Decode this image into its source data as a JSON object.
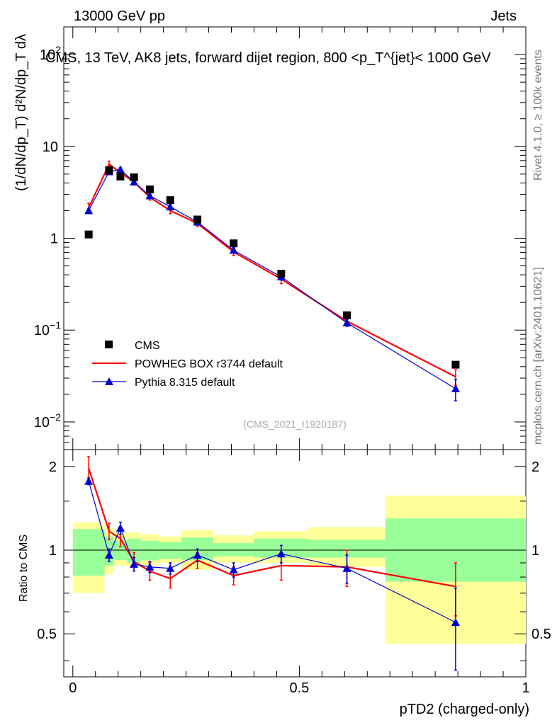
{
  "header": {
    "left": "13000 GeV pp",
    "right": "Jets"
  },
  "side_text": {
    "rivet": "Rivet 4.1.0, ≥ 100k events",
    "mcplots": "mcplots.cern.ch [arXiv:2401.10621]"
  },
  "analysis_id": "(CMS_2021_I1920187)",
  "colors": {
    "data": "#000000",
    "powheg": "#ff0000",
    "pythia": "#0000cc",
    "band_yellow": "#ffff99",
    "band_green": "#99ff99"
  },
  "chart_data": [
    {
      "type": "scatter",
      "role": "main",
      "title": "CMS, 13 TeV, AK8 jets, forward dijet region, 800 <p_T^{jet}< 1000 GeV",
      "ylabel": "(1/dN/dp_T) d²N/dp_T dλ",
      "yscale": "log",
      "ylim": [
        0.005,
        200
      ],
      "xlim": [
        -0.02,
        1.0
      ],
      "yticks": [
        {
          "value": 100,
          "label": "10",
          "sup": "2"
        },
        {
          "value": 10,
          "label": "10",
          "sup": ""
        },
        {
          "value": 1,
          "label": "1",
          "sup": ""
        },
        {
          "value": 0.1,
          "label": "10",
          "sup": "−1"
        },
        {
          "value": 0.01,
          "label": "10",
          "sup": "−2"
        }
      ],
      "x": [
        0.035,
        0.08,
        0.105,
        0.135,
        0.17,
        0.215,
        0.275,
        0.355,
        0.46,
        0.605,
        0.845
      ],
      "x_edges": [
        0,
        0.07,
        0.09,
        0.12,
        0.15,
        0.19,
        0.24,
        0.31,
        0.4,
        0.52,
        0.69,
        1.0
      ],
      "legend": [
        "CMS",
        "POWHEG BOX r3744 default",
        "Pythia 8.315 default"
      ],
      "series": [
        {
          "name": "CMS",
          "values": [
            1.1,
            5.5,
            4.7,
            4.6,
            3.4,
            2.6,
            1.6,
            0.88,
            0.41,
            0.145,
            0.042
          ]
        },
        {
          "name": "POWHEG BOX r3744 default",
          "values": [
            2.15,
            6.4,
            5.2,
            4.1,
            2.8,
            2.0,
            1.45,
            0.71,
            0.36,
            0.125,
            0.031
          ],
          "errors": [
            0.25,
            0.5,
            0.4,
            0.3,
            0.2,
            0.15,
            0.1,
            0.06,
            0.04,
            0.015,
            0.006
          ]
        },
        {
          "name": "Pythia 8.315 default",
          "values": [
            2.0,
            5.3,
            5.6,
            4.1,
            2.9,
            2.2,
            1.5,
            0.74,
            0.38,
            0.12,
            0.023
          ],
          "errors": [
            0.1,
            0.2,
            0.3,
            0.25,
            0.15,
            0.12,
            0.1,
            0.05,
            0.03,
            0.01,
            0.006
          ]
        }
      ]
    },
    {
      "type": "line",
      "role": "ratio",
      "ylabel": "Ratio to CMS",
      "xlabel": "pTD2 (charged-only)",
      "ylim": [
        0.35,
        2.3
      ],
      "xlim": [
        -0.02,
        1.0
      ],
      "yticks": [
        0.5,
        1,
        2
      ],
      "xticks": [
        0,
        0.5,
        1
      ],
      "band_green": [
        [
          0.81,
          1.19
        ],
        [
          0.88,
          1.12
        ],
        [
          0.92,
          1.08
        ],
        [
          0.9,
          1.1
        ],
        [
          0.92,
          1.08
        ],
        [
          0.93,
          1.07
        ],
        [
          0.92,
          1.11
        ],
        [
          0.95,
          1.06
        ],
        [
          0.94,
          1.1
        ],
        [
          0.94,
          1.09
        ],
        [
          0.77,
          1.3
        ]
      ],
      "band_yellow": [
        [
          0.7,
          1.26
        ],
        [
          0.82,
          1.2
        ],
        [
          0.88,
          1.16
        ],
        [
          0.87,
          1.16
        ],
        [
          0.88,
          1.14
        ],
        [
          0.9,
          1.12
        ],
        [
          0.85,
          1.18
        ],
        [
          0.9,
          1.13
        ],
        [
          0.9,
          1.17
        ],
        [
          0.87,
          1.21
        ],
        [
          0.46,
          1.57
        ]
      ],
      "series": [
        {
          "name": "POWHEG BOX r3744 default",
          "values": [
            1.97,
            1.17,
            1.1,
            0.91,
            0.84,
            0.79,
            0.92,
            0.81,
            0.88,
            0.87,
            0.74
          ],
          "errors": [
            0.2,
            0.08,
            0.07,
            0.07,
            0.06,
            0.06,
            0.06,
            0.06,
            0.1,
            0.13,
            0.16
          ]
        },
        {
          "name": "Pythia 8.315 default",
          "values": [
            1.77,
            0.96,
            1.2,
            0.89,
            0.87,
            0.86,
            0.96,
            0.85,
            0.97,
            0.86,
            0.55
          ],
          "errors": [
            0.05,
            0.05,
            0.06,
            0.05,
            0.04,
            0.04,
            0.05,
            0.05,
            0.07,
            0.1,
            0.18
          ]
        }
      ]
    }
  ]
}
